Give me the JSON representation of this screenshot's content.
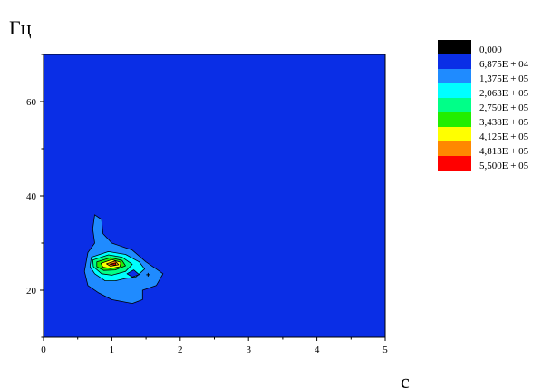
{
  "chart_data": {
    "type": "contour",
    "ylabel": "Гц",
    "xlabel": "с",
    "xlim": [
      0,
      5
    ],
    "ylim": [
      10,
      70
    ],
    "xticks": [
      0,
      1,
      2,
      3,
      4,
      5
    ],
    "yticks": [
      20,
      40,
      60
    ],
    "xtick_labels": [
      "0",
      "1",
      "2",
      "3",
      "4",
      "5"
    ],
    "ytick_labels": [
      "20",
      "40",
      "60"
    ],
    "legend_placement": "right",
    "levels": [
      {
        "label": "0,000",
        "color": "#000000"
      },
      {
        "label": "6,875E + 04",
        "color": "#0a2ee6"
      },
      {
        "label": "1,375E + 05",
        "color": "#1f8bff"
      },
      {
        "label": "2,063E + 05",
        "color": "#00ffff"
      },
      {
        "label": "2,750E + 05",
        "color": "#00ff88"
      },
      {
        "label": "3,438E + 05",
        "color": "#22ee00"
      },
      {
        "label": "4,125E + 05",
        "color": "#ffff00"
      },
      {
        "label": "4,813E + 05",
        "color": "#ff8800"
      },
      {
        "label": "5,500E + 05",
        "color": "#ff0000"
      }
    ],
    "background_level": 1,
    "contours": [
      {
        "level": 2,
        "points": [
          [
            0.75,
            36
          ],
          [
            0.85,
            35
          ],
          [
            0.87,
            32
          ],
          [
            1.0,
            30
          ],
          [
            1.3,
            28.5
          ],
          [
            1.5,
            26
          ],
          [
            1.65,
            24.5
          ],
          [
            1.75,
            23.5
          ],
          [
            1.65,
            21
          ],
          [
            1.45,
            20
          ],
          [
            1.45,
            18
          ],
          [
            1.3,
            17.2
          ],
          [
            1.15,
            17.6
          ],
          [
            1.0,
            18
          ],
          [
            0.8,
            19.5
          ],
          [
            0.65,
            21
          ],
          [
            0.6,
            24
          ],
          [
            0.65,
            28
          ],
          [
            0.75,
            30
          ],
          [
            0.72,
            33
          ]
        ]
      },
      {
        "level": 3,
        "points": [
          [
            0.7,
            27
          ],
          [
            0.95,
            28.2
          ],
          [
            1.2,
            27.6
          ],
          [
            1.4,
            26
          ],
          [
            1.48,
            24.5
          ],
          [
            1.35,
            22.8
          ],
          [
            1.2,
            22.5
          ],
          [
            1.05,
            22
          ],
          [
            0.9,
            22
          ],
          [
            0.75,
            23.5
          ],
          [
            0.68,
            25
          ]
        ]
      },
      {
        "level": 4,
        "points": [
          [
            0.72,
            26.4
          ],
          [
            0.95,
            27.5
          ],
          [
            1.15,
            27
          ],
          [
            1.3,
            25.5
          ],
          [
            1.2,
            24
          ],
          [
            1.0,
            23.2
          ],
          [
            0.85,
            23.5
          ],
          [
            0.73,
            25
          ]
        ]
      },
      {
        "level": 5,
        "points": [
          [
            0.78,
            26
          ],
          [
            0.98,
            26.9
          ],
          [
            1.15,
            26.3
          ],
          [
            1.2,
            25.2
          ],
          [
            1.05,
            24.3
          ],
          [
            0.88,
            24.2
          ],
          [
            0.78,
            25
          ]
        ]
      },
      {
        "level": 6,
        "points": [
          [
            0.84,
            25.7
          ],
          [
            1.0,
            26.5
          ],
          [
            1.13,
            25.9
          ],
          [
            1.12,
            25.0
          ],
          [
            0.98,
            24.6
          ],
          [
            0.87,
            24.9
          ]
        ]
      },
      {
        "level": 7,
        "points": [
          [
            0.92,
            25.6
          ],
          [
            1.05,
            26.2
          ],
          [
            1.1,
            25.4
          ],
          [
            0.98,
            25.1
          ]
        ]
      },
      {
        "level": 8,
        "points": [
          [
            0.97,
            25.5
          ],
          [
            1.06,
            25.8
          ],
          [
            1.05,
            25.3
          ]
        ]
      },
      {
        "level": 1,
        "points": [
          [
            1.22,
            23.5
          ],
          [
            1.32,
            24.3
          ],
          [
            1.4,
            23.3
          ],
          [
            1.3,
            22.8
          ]
        ]
      }
    ],
    "markers": [
      [
        1.53,
        23.3
      ]
    ]
  }
}
